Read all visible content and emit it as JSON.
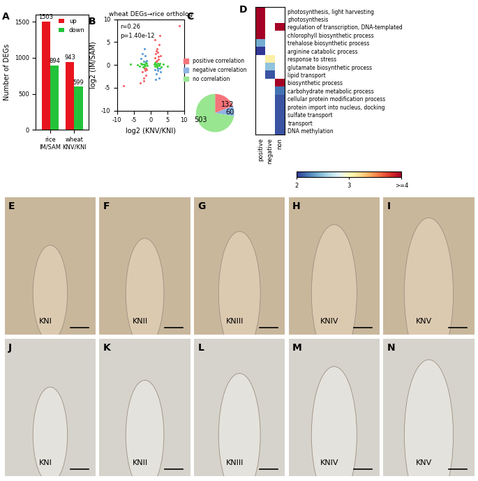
{
  "chart_data": [
    {
      "panel": "A",
      "type": "bar",
      "categories": [
        "rice\nIM/SAM",
        "wheat\nKNV/KNI"
      ],
      "series": [
        {
          "name": "up",
          "color": "#e8141e",
          "values": [
            1503,
            943
          ]
        },
        {
          "name": "down",
          "color": "#22c33a",
          "values": [
            894,
            599
          ]
        }
      ],
      "y_label": "Number of DEGs",
      "ylim": [
        0,
        1600
      ],
      "yticks": [
        0,
        500,
        1000,
        1500
      ],
      "data_labels": true,
      "legend": "upper right"
    },
    {
      "panel": "B",
      "type": "scatter",
      "title": "wheat DEGs→rice ortholog",
      "x_label": "log2 (KNV/KNI)",
      "y_label": "log2 (IM/SAM)",
      "xlim": [
        -10,
        10
      ],
      "ylim": [
        -10,
        10
      ],
      "xticks": [
        -10,
        -5,
        0,
        5,
        10
      ],
      "yticks": [
        -10,
        -5,
        0,
        5,
        10
      ],
      "annotations": [
        "r=0.26",
        "p=1.40e-12"
      ],
      "series": [
        {
          "name": "positive correlation",
          "color": "#f4646a",
          "x": [
            1.2,
            1.5,
            1.8,
            2.0,
            2.3,
            2.6,
            3.0,
            1.4,
            1.9,
            2.2,
            2.8,
            1.6,
            -1.2,
            -1.5,
            -1.8,
            -2.1,
            -2.5,
            -3.0,
            -1.4,
            -2.0,
            8.5,
            -8.0,
            1.7,
            2.4,
            -1.7
          ],
          "y": [
            1.5,
            2.5,
            0.8,
            3.5,
            1.2,
            4.5,
            2.0,
            5.5,
            1.0,
            2.8,
            6.5,
            0.7,
            -1.0,
            -2.2,
            -0.8,
            -3.5,
            -1.5,
            -4.0,
            -0.7,
            -2.8,
            8.5,
            -4.5,
            3.0,
            1.8,
            -1.2
          ]
        },
        {
          "name": "negative correlation",
          "color": "#5b9bd5",
          "x": [
            1.3,
            1.7,
            2.1,
            2.5,
            2.9,
            1.5,
            2.2,
            -1.3,
            -1.6,
            -2.0,
            -2.4,
            -2.8,
            -1.8,
            -1.5,
            2.7
          ],
          "y": [
            -1.0,
            -2.0,
            -0.8,
            -2.8,
            -1.5,
            -3.2,
            -1.2,
            1.0,
            2.0,
            0.8,
            2.5,
            1.4,
            3.5,
            0.7,
            -0.7
          ]
        },
        {
          "name": "no correlation",
          "color": "#3fcf3a",
          "x": [
            1.1,
            1.3,
            1.6,
            1.9,
            2.2,
            2.5,
            2.8,
            3.2,
            3.8,
            1.4,
            2.0,
            2.6,
            -1.1,
            -1.3,
            -1.6,
            -1.9,
            -2.2,
            -2.5,
            -2.8,
            -3.3,
            -4.0,
            -1.5,
            -2.0,
            -2.6,
            5.0,
            -6.0,
            1.8,
            -1.8
          ],
          "y": [
            0.2,
            -0.3,
            0.1,
            -0.2,
            0.4,
            -0.1,
            0.3,
            -0.4,
            0.1,
            0.5,
            -0.5,
            0.0,
            -0.2,
            0.3,
            -0.1,
            0.2,
            -0.4,
            0.1,
            0.4,
            -0.3,
            0.0,
            0.5,
            -0.5,
            0.2,
            -0.3,
            0.1,
            0.0,
            -0.1
          ]
        }
      ]
    },
    {
      "panel": "C",
      "type": "pie",
      "categories": [
        "positive correlation",
        "negative correlation",
        "no correlation"
      ],
      "values": [
        132,
        60,
        503
      ],
      "colors": [
        "#f4747a",
        "#8fb4e3",
        "#98e690"
      ],
      "data_labels": true,
      "legend": "top"
    },
    {
      "panel": "D",
      "type": "heatmap",
      "columns": [
        "positive",
        "negative",
        "non"
      ],
      "rows": [
        "photosynthesis, light harvesting",
        "photosynthesis",
        "regulation of transcription, DNA-templated",
        "chlorophyll biosynthetic process",
        "trehalose biosynthetic process",
        "arginine catabolic process",
        "response to stress",
        "glutamate biosynthetic process",
        "lipid transport",
        "biosynthetic process",
        "carbohydrate metabolic process",
        "cellular protein modification process",
        "protein import into nucleus, docking",
        "sulfate transport",
        "transport",
        "DNA methylation"
      ],
      "cells": [
        [
          4,
          null,
          null
        ],
        [
          4,
          null,
          null
        ],
        [
          4,
          null,
          4
        ],
        [
          4,
          null,
          null
        ],
        [
          2.4,
          null,
          null
        ],
        [
          2.0,
          null,
          null
        ],
        [
          null,
          3.1,
          null
        ],
        [
          null,
          2.5,
          null
        ],
        [
          null,
          2.1,
          null
        ],
        [
          null,
          null,
          4
        ],
        [
          null,
          null,
          2.2
        ],
        [
          null,
          null,
          2.1
        ],
        [
          null,
          null,
          2.1
        ],
        [
          null,
          null,
          2.1
        ],
        [
          null,
          null,
          2.1
        ],
        [
          null,
          null,
          2.1
        ]
      ],
      "colorbar_range": [
        2,
        4
      ],
      "colorbar_ticks": [
        2,
        3,
        {
          "value": 4,
          "label": ">=4"
        }
      ]
    }
  ],
  "images": [
    {
      "label": "E",
      "stage": "KNI"
    },
    {
      "label": "F",
      "stage": "KNII"
    },
    {
      "label": "G",
      "stage": "KNIII"
    },
    {
      "label": "H",
      "stage": "KNIV"
    },
    {
      "label": "I",
      "stage": "KNV"
    },
    {
      "label": "J",
      "stage": "KNI"
    },
    {
      "label": "K",
      "stage": "KNII"
    },
    {
      "label": "L",
      "stage": "KNIII"
    },
    {
      "label": "M",
      "stage": "KNIV"
    },
    {
      "label": "N",
      "stage": "KNV"
    }
  ]
}
